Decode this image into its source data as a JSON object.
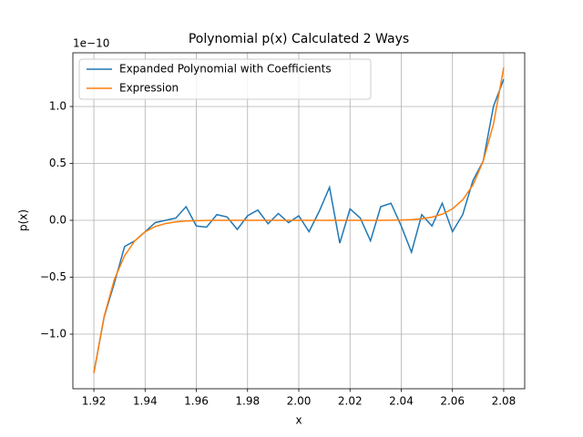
{
  "chart_data": {
    "type": "line",
    "title": "Polynomial p(x) Calculated 2 Ways",
    "xlabel": "x",
    "ylabel": "p(x)",
    "y_offset_label": "1e−10",
    "x": [
      1.92,
      1.924,
      1.928,
      1.932,
      1.936,
      1.94,
      1.944,
      1.948,
      1.952,
      1.956,
      1.96,
      1.964,
      1.968,
      1.972,
      1.976,
      1.98,
      1.984,
      1.988,
      1.992,
      1.996,
      2.0,
      2.004,
      2.008,
      2.012,
      2.016,
      2.02,
      2.024,
      2.028,
      2.032,
      2.036,
      2.04,
      2.044,
      2.048,
      2.052,
      2.056,
      2.06,
      2.064,
      2.068,
      2.072,
      2.076,
      2.08
    ],
    "series": [
      {
        "name": "Expanded Polynomial with Coefficients",
        "color": "#1f77b4",
        "values": [
          -1.34,
          -0.85,
          -0.55,
          -0.23,
          -0.18,
          -0.1,
          -0.02,
          0.0,
          0.02,
          0.12,
          -0.05,
          -0.06,
          0.05,
          0.03,
          -0.08,
          0.04,
          0.09,
          -0.03,
          0.06,
          -0.02,
          0.04,
          -0.1,
          0.08,
          0.29,
          -0.2,
          0.1,
          0.02,
          -0.18,
          0.12,
          0.15,
          -0.05,
          -0.28,
          0.05,
          -0.05,
          0.15,
          -0.1,
          0.05,
          0.35,
          0.52,
          1.0,
          1.24
        ]
      },
      {
        "name": "Expression",
        "color": "#ff7f0e",
        "values": [
          -1.342,
          -0.845,
          -0.52,
          -0.311,
          -0.18,
          -0.101,
          -0.054,
          -0.028,
          -0.014,
          -0.006,
          -0.003,
          -0.001,
          0,
          0,
          0,
          0,
          0,
          0,
          0,
          0,
          0,
          0,
          0,
          0,
          0,
          0,
          0,
          0,
          0,
          0.001,
          0.003,
          0.006,
          0.014,
          0.028,
          0.054,
          0.101,
          0.18,
          0.311,
          0.52,
          0.845,
          1.342
        ]
      }
    ],
    "xlim": [
      1.9118,
      2.0882
    ],
    "ylim": [
      -1.48,
      1.472
    ],
    "xticks": [
      {
        "value": 1.92,
        "label": "1.92"
      },
      {
        "value": 1.94,
        "label": "1.94"
      },
      {
        "value": 1.96,
        "label": "1.96"
      },
      {
        "value": 1.98,
        "label": "1.98"
      },
      {
        "value": 2.0,
        "label": "2.00"
      },
      {
        "value": 2.02,
        "label": "2.02"
      },
      {
        "value": 2.04,
        "label": "2.04"
      },
      {
        "value": 2.06,
        "label": "2.06"
      },
      {
        "value": 2.08,
        "label": "2.08"
      }
    ],
    "yticks": [
      {
        "value": -1,
        "label": "−1.0"
      },
      {
        "value": -0.5,
        "label": "−0.5"
      },
      {
        "value": 0,
        "label": "0.0"
      },
      {
        "value": 0.5,
        "label": "0.5"
      },
      {
        "value": 1,
        "label": "1.0"
      }
    ],
    "grid": true,
    "legend": "upper-left"
  }
}
